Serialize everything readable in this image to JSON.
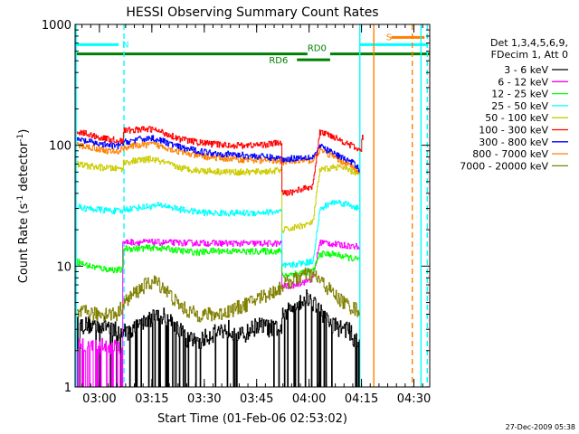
{
  "chart_data": {
    "type": "line",
    "title": "HESSI Observing Summary Count Rates",
    "xlabel": "Start Time (01-Feb-06 02:53:02)",
    "ylabel_main": "Count Rate (s",
    "ylabel_sup1": "-1",
    "ylabel_mid": " detector",
    "ylabel_sup2": "-1",
    "ylabel_end": ")",
    "x_unit": "minutes after 02:53:02",
    "xlim": [
      0,
      101.5
    ],
    "ylim": [
      1,
      1000
    ],
    "yscale": "log",
    "x_ticks": [
      {
        "label": "03:00",
        "x": 6.97
      },
      {
        "label": "03:15",
        "x": 21.97
      },
      {
        "label": "03:30",
        "x": 36.97
      },
      {
        "label": "03:45",
        "x": 51.97
      },
      {
        "label": "04:00",
        "x": 66.97
      },
      {
        "label": "04:15",
        "x": 81.97
      },
      {
        "label": "04:30",
        "x": 96.97
      }
    ],
    "y_ticks": [
      {
        "label": "1",
        "value": 1
      },
      {
        "label": "10",
        "value": 10
      },
      {
        "label": "100",
        "value": 100
      },
      {
        "label": "1000",
        "value": 1000
      }
    ],
    "legend_header": [
      "Det 1,3,4,5,6,9,",
      "FDecim 1, Att 0"
    ],
    "legend_position": "right",
    "series": [
      {
        "name": "3 - 6 keV",
        "color": "#000000",
        "x": [
          0.5,
          3.0,
          5.5,
          8.0,
          10.0,
          12.0,
          14.0,
          17.0,
          20.0,
          24.0,
          28.0,
          32.0,
          36.0,
          40.0,
          44.0,
          48.0,
          52.0,
          56.0,
          58.5,
          59.5,
          62.0,
          64.0,
          66.0,
          68.0,
          70.0,
          72.0,
          74.0,
          76.0,
          78.0,
          80.0,
          81.5
        ],
        "y": [
          3.2,
          3.2,
          3.2,
          3.2,
          3.2,
          2.8,
          2.8,
          3.0,
          3.4,
          4.0,
          3.4,
          2.4,
          2.4,
          2.8,
          3.0,
          2.6,
          3.2,
          3.0,
          3.0,
          3.8,
          4.4,
          5.0,
          5.4,
          5.0,
          4.2,
          3.5,
          3.2,
          3.0,
          3.0,
          2.4,
          2.4
        ]
      },
      {
        "name": "6 - 12 keV",
        "color": "#ff00ff",
        "x": [
          0.5,
          2.0,
          3.5,
          4.5,
          6.0,
          8.0,
          11.0,
          13.0,
          14.0,
          20.0,
          30.0,
          40.0,
          50.0,
          56.0,
          58.5,
          59.5,
          62.0,
          64.0,
          66.0,
          68.0,
          70.0,
          72.0,
          74.0,
          76.0,
          78.0,
          80.0,
          81.5
        ],
        "y": [
          2.2,
          2.2,
          2.2,
          2.2,
          2.2,
          2.2,
          2.2,
          2.2,
          15.8,
          15.8,
          15.6,
          15.5,
          15.4,
          15.4,
          15.4,
          6.8,
          6.9,
          7.2,
          7.5,
          7.9,
          15.8,
          15.6,
          15.2,
          15.0,
          14.8,
          14.6,
          14.6
        ]
      },
      {
        "name": "12 - 25 keV",
        "color": "#00ff00",
        "x": [
          0.5,
          2.0,
          4.0,
          6.0,
          8.0,
          10.0,
          12.0,
          13.5,
          14.0,
          18.0,
          22.0,
          26.0,
          30.0,
          35.0,
          40.0,
          45.0,
          50.0,
          55.0,
          58.5,
          59.5,
          62.0,
          64.0,
          66.0,
          68.0,
          70.0,
          74.0,
          78.0,
          80.0,
          81.5
        ],
        "y": [
          11.0,
          10.5,
          10.0,
          9.8,
          9.5,
          9.4,
          9.3,
          9.3,
          14.0,
          14.0,
          14.2,
          14.0,
          13.4,
          13.0,
          13.4,
          13.3,
          13.2,
          13.3,
          13.3,
          8.4,
          8.6,
          8.8,
          9.0,
          9.0,
          12.6,
          12.6,
          11.8,
          11.5,
          11.2
        ]
      },
      {
        "name": "25 - 50 keV",
        "color": "#00ffff",
        "x": [
          0.5,
          3.0,
          6.0,
          9.0,
          12.0,
          13.5,
          14.0,
          20.0,
          25.0,
          30.0,
          35.0,
          40.0,
          45.0,
          50.0,
          55.0,
          58.5,
          59.5,
          62.0,
          64.0,
          66.0,
          68.0,
          70.0,
          72.0,
          74.0,
          76.0,
          78.0,
          80.0,
          81.5
        ],
        "y": [
          31.0,
          30.0,
          29.5,
          29.0,
          28.5,
          28.3,
          29.5,
          31.0,
          32.0,
          29.5,
          28.0,
          27.5,
          27.5,
          27.5,
          28.0,
          28.3,
          10.0,
          10.2,
          10.5,
          10.7,
          11.0,
          29.0,
          32.0,
          34.0,
          33.5,
          32.5,
          31.0,
          29.5
        ]
      },
      {
        "name": "50 - 100 keV",
        "color": "#cccc00",
        "x": [
          0.5,
          3.0,
          6.0,
          9.0,
          12.0,
          13.5,
          14.0,
          18.0,
          22.0,
          26.0,
          30.0,
          35.0,
          40.0,
          45.0,
          50.0,
          55.0,
          58.5,
          59.5,
          62.0,
          64.0,
          66.0,
          68.0,
          70.0,
          72.0,
          74.0,
          76.0,
          78.0,
          80.0,
          81.5
        ],
        "y": [
          70.0,
          68.0,
          66.0,
          65.0,
          64.0,
          64.0,
          72.0,
          75.0,
          77.0,
          71.0,
          65.0,
          62.0,
          61.0,
          60.0,
          60.0,
          61.0,
          62.0,
          20.0,
          20.5,
          21.5,
          22.0,
          23.0,
          62.0,
          64.0,
          66.0,
          66.0,
          62.0,
          60.0,
          58.0
        ]
      },
      {
        "name": "100 - 300 keV",
        "color": "#ff0000",
        "x": [
          0.5,
          3.0,
          6.0,
          9.0,
          12.0,
          13.5,
          14.0,
          18.0,
          22.0,
          26.0,
          30.0,
          35.0,
          40.0,
          45.0,
          50.0,
          55.0,
          58.5,
          59.5,
          62.0,
          64.0,
          66.0,
          68.0,
          70.0,
          72.0,
          74.0,
          76.0,
          78.0,
          80.0,
          81.5,
          82.5
        ],
        "y": [
          130.0,
          125.0,
          118.0,
          113.0,
          110.0,
          110.0,
          132.0,
          135.0,
          136.0,
          125.0,
          113.0,
          106.0,
          102.0,
          100.0,
          100.0,
          102.0,
          105.0,
          40.0,
          41.0,
          43.0,
          44.0,
          46.0,
          128.0,
          125.0,
          118.0,
          110.0,
          103.0,
          96.0,
          90.0,
          115.0
        ]
      },
      {
        "name": "300 - 800 keV",
        "color": "#0000ff",
        "x": [
          0.5,
          3.0,
          6.0,
          9.0,
          12.0,
          14.0,
          18.0,
          22.0,
          26.0,
          30.0,
          35.0,
          40.0,
          45.0,
          50.0,
          55.0,
          58.5,
          59.5,
          62.0,
          64.0,
          66.0,
          68.0,
          70.0,
          72.0,
          74.0,
          76.0,
          78.0,
          80.0,
          81.5
        ],
        "y": [
          112.0,
          108.0,
          104.0,
          100.0,
          98.0,
          106.0,
          112.0,
          115.0,
          106.0,
          96.0,
          90.0,
          86.0,
          84.0,
          82.0,
          80.0,
          78.0,
          76.0,
          78.0,
          79.0,
          80.0,
          80.0,
          98.0,
          92.0,
          86.0,
          80.0,
          75.0,
          70.0,
          62.0
        ]
      },
      {
        "name": "800 - 7000 keV",
        "color": "#ff8000",
        "x": [
          0.5,
          3.0,
          6.0,
          9.0,
          12.0,
          14.0,
          18.0,
          22.0,
          26.0,
          30.0,
          35.0,
          40.0,
          45.0,
          50.0,
          55.0,
          58.5,
          59.5,
          62.0,
          64.0,
          66.0,
          68.0,
          70.0,
          72.0,
          74.0,
          76.0,
          78.0,
          80.0,
          81.5
        ],
        "y": [
          100.0,
          98.0,
          94.0,
          90.0,
          88.0,
          96.0,
          100.0,
          102.0,
          96.0,
          88.0,
          82.0,
          79.0,
          77.0,
          76.0,
          75.0,
          75.0,
          73.0,
          73.0,
          74.0,
          75.0,
          75.0,
          92.0,
          86.0,
          80.0,
          74.0,
          70.0,
          66.0,
          56.0
        ]
      },
      {
        "name": "7000 - 20000 keV",
        "color": "#808000",
        "x": [
          0.5,
          3.0,
          6.0,
          9.0,
          12.0,
          14.0,
          17.0,
          20.0,
          23.0,
          26.0,
          29.0,
          32.0,
          35.0,
          38.0,
          41.0,
          44.0,
          47.0,
          50.0,
          53.0,
          56.0,
          58.5,
          59.5,
          61.0,
          63.0,
          65.0,
          67.0,
          69.0,
          71.0,
          73.0,
          75.0,
          77.0,
          79.0,
          81.5
        ],
        "y": [
          4.0,
          4.2,
          4.0,
          4.1,
          4.0,
          5.0,
          6.0,
          7.0,
          7.5,
          6.4,
          5.0,
          4.3,
          4.0,
          4.0,
          4.0,
          4.3,
          4.6,
          5.0,
          5.6,
          6.0,
          6.6,
          7.0,
          7.4,
          7.8,
          8.4,
          8.6,
          8.1,
          7.2,
          6.3,
          5.5,
          5.0,
          4.6,
          4.3
        ]
      }
    ],
    "flags": [
      {
        "label": "N",
        "color": "#00ffff",
        "y": 680,
        "x_start": 0,
        "x_end": 12.5,
        "label_x": 13.5
      },
      {
        "label": "S",
        "color": "#00ffff",
        "y": 680,
        "x_start": 81.5,
        "x_end": 101,
        "label_x": null
      },
      {
        "label": "S",
        "color": "#ff8000",
        "y": 780,
        "x_start": 90.5,
        "x_end": 100,
        "label_x": 89
      },
      {
        "label": "RD0",
        "color": "#008000",
        "y": 570,
        "x_start": 0,
        "x_end": 101.5,
        "label_x": 66.5,
        "gap": [
          66.5,
          73.0
        ],
        "label_side": "above"
      },
      {
        "label": "RD6",
        "color": "#008000",
        "y": 510,
        "x_start": 63.5,
        "x_end": 73.0,
        "label_x": 55.5,
        "label_side": "left"
      }
    ],
    "vlines": [
      {
        "x": 0.3,
        "color": "#00ffff",
        "dash": false
      },
      {
        "x": 14.0,
        "color": "#00ffff",
        "dash": true
      },
      {
        "x": 81.5,
        "color": "#00ffff",
        "dash": false
      },
      {
        "x": 85.5,
        "color": "#ff8000",
        "dash": false
      },
      {
        "x": 96.5,
        "color": "#ff8000",
        "dash": true
      },
      {
        "x": 99.0,
        "color": "#00ffff",
        "dash": false
      },
      {
        "x": 100.8,
        "color": "#00ffff",
        "dash": true
      }
    ],
    "footer_timestamp": "27-Dec-2009 05:38"
  }
}
